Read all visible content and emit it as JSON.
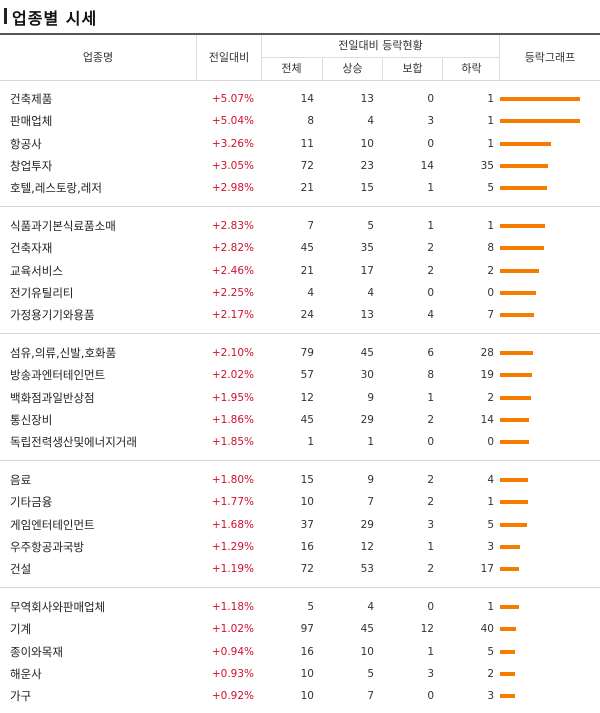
{
  "title": "업종별 시세",
  "header": {
    "col_name": "업종명",
    "col_change": "전일대비",
    "col_group": "전일대비 등락현황",
    "col_total": "전체",
    "col_up": "상승",
    "col_flat": "보합",
    "col_down": "하락",
    "col_graph": "등락그래프"
  },
  "colors": {
    "up": "#d0112b",
    "bar": "#f57c00"
  },
  "rows": [
    {
      "name": "건축제품",
      "change": "+5.07%",
      "total": "14",
      "up": "13",
      "flat": "0",
      "down": "1",
      "pct": 5.07
    },
    {
      "name": "판매업체",
      "change": "+5.04%",
      "total": "8",
      "up": "4",
      "flat": "3",
      "down": "1",
      "pct": 5.04
    },
    {
      "name": "항공사",
      "change": "+3.26%",
      "total": "11",
      "up": "10",
      "flat": "0",
      "down": "1",
      "pct": 3.26
    },
    {
      "name": "창업투자",
      "change": "+3.05%",
      "total": "72",
      "up": "23",
      "flat": "14",
      "down": "35",
      "pct": 3.05
    },
    {
      "name": "호텔,레스토랑,레저",
      "change": "+2.98%",
      "total": "21",
      "up": "15",
      "flat": "1",
      "down": "5",
      "pct": 2.98
    },
    {
      "name": "식품과기본식료품소매",
      "change": "+2.83%",
      "total": "7",
      "up": "5",
      "flat": "1",
      "down": "1",
      "pct": 2.83
    },
    {
      "name": "건축자재",
      "change": "+2.82%",
      "total": "45",
      "up": "35",
      "flat": "2",
      "down": "8",
      "pct": 2.82
    },
    {
      "name": "교육서비스",
      "change": "+2.46%",
      "total": "21",
      "up": "17",
      "flat": "2",
      "down": "2",
      "pct": 2.46
    },
    {
      "name": "전기유틸리티",
      "change": "+2.25%",
      "total": "4",
      "up": "4",
      "flat": "0",
      "down": "0",
      "pct": 2.25
    },
    {
      "name": "가정용기기와용품",
      "change": "+2.17%",
      "total": "24",
      "up": "13",
      "flat": "4",
      "down": "7",
      "pct": 2.17
    },
    {
      "name": "섬유,의류,신발,호화품",
      "change": "+2.10%",
      "total": "79",
      "up": "45",
      "flat": "6",
      "down": "28",
      "pct": 2.1
    },
    {
      "name": "방송과엔터테인먼트",
      "change": "+2.02%",
      "total": "57",
      "up": "30",
      "flat": "8",
      "down": "19",
      "pct": 2.02
    },
    {
      "name": "백화점과일반상점",
      "change": "+1.95%",
      "total": "12",
      "up": "9",
      "flat": "1",
      "down": "2",
      "pct": 1.95
    },
    {
      "name": "통신장비",
      "change": "+1.86%",
      "total": "45",
      "up": "29",
      "flat": "2",
      "down": "14",
      "pct": 1.86
    },
    {
      "name": "독립전력생산및에너지거래",
      "change": "+1.85%",
      "total": "1",
      "up": "1",
      "flat": "0",
      "down": "0",
      "pct": 1.85
    },
    {
      "name": "음료",
      "change": "+1.80%",
      "total": "15",
      "up": "9",
      "flat": "2",
      "down": "4",
      "pct": 1.8
    },
    {
      "name": "기타금융",
      "change": "+1.77%",
      "total": "10",
      "up": "7",
      "flat": "2",
      "down": "1",
      "pct": 1.77
    },
    {
      "name": "게임엔터테인먼트",
      "change": "+1.68%",
      "total": "37",
      "up": "29",
      "flat": "3",
      "down": "5",
      "pct": 1.68
    },
    {
      "name": "우주항공과국방",
      "change": "+1.29%",
      "total": "16",
      "up": "12",
      "flat": "1",
      "down": "3",
      "pct": 1.29
    },
    {
      "name": "건설",
      "change": "+1.19%",
      "total": "72",
      "up": "53",
      "flat": "2",
      "down": "17",
      "pct": 1.19
    },
    {
      "name": "무역회사와판매업체",
      "change": "+1.18%",
      "total": "5",
      "up": "4",
      "flat": "0",
      "down": "1",
      "pct": 1.18
    },
    {
      "name": "기계",
      "change": "+1.02%",
      "total": "97",
      "up": "45",
      "flat": "12",
      "down": "40",
      "pct": 1.02
    },
    {
      "name": "종이와목재",
      "change": "+0.94%",
      "total": "16",
      "up": "10",
      "flat": "1",
      "down": "5",
      "pct": 0.94
    },
    {
      "name": "해운사",
      "change": "+0.93%",
      "total": "10",
      "up": "5",
      "flat": "3",
      "down": "2",
      "pct": 0.93
    },
    {
      "name": "가구",
      "change": "+0.92%",
      "total": "10",
      "up": "7",
      "flat": "0",
      "down": "3",
      "pct": 0.92
    }
  ]
}
